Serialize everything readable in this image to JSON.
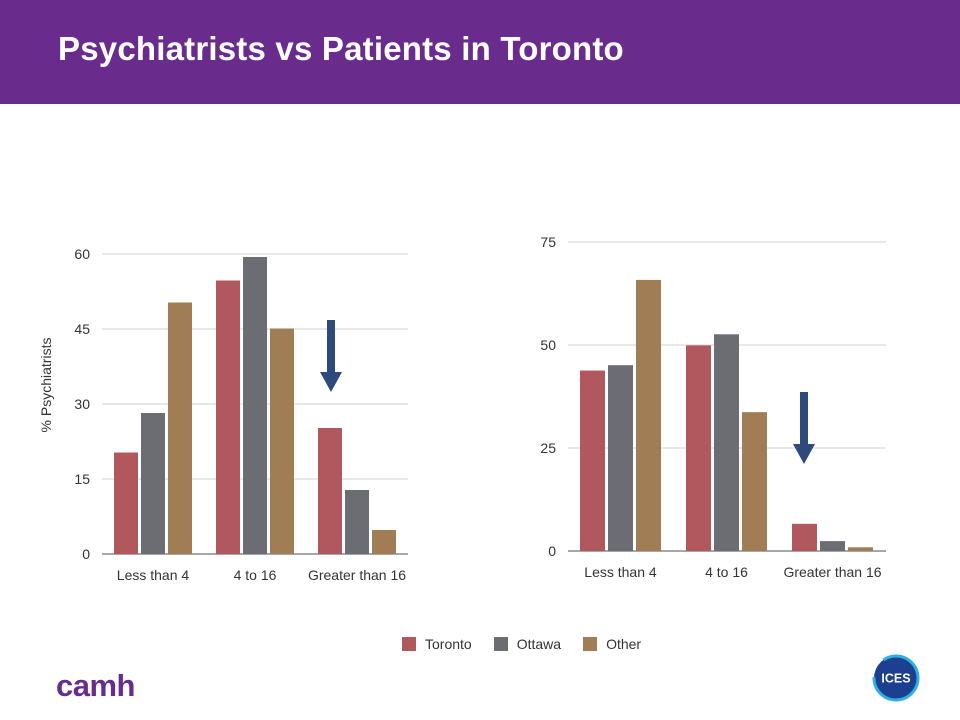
{
  "title": "Psychiatrists vs Patients in Toronto",
  "brand": {
    "name": "camh",
    "partner_logo": "ICES"
  },
  "colors": {
    "header": "#6a2c8c",
    "toronto": "#b0585e",
    "ottawa": "#6b6d73",
    "other": "#a07d55",
    "arrow": "#2e4a7d"
  },
  "legend": [
    {
      "label": "Toronto",
      "color": "#b0585e"
    },
    {
      "label": "Ottawa",
      "color": "#6b6d73"
    },
    {
      "label": "Other",
      "color": "#a07d55"
    }
  ],
  "chart_data": [
    {
      "type": "bar",
      "categories": [
        "Less than 4",
        "4 to 16",
        "Greater than 16"
      ],
      "series": [
        {
          "name": "Toronto",
          "values": [
            20.3,
            54.7,
            25.2
          ]
        },
        {
          "name": "Ottawa",
          "values": [
            28.2,
            59.4,
            12.8
          ]
        },
        {
          "name": "Other",
          "values": [
            50.3,
            45.1,
            4.8
          ]
        }
      ],
      "ylabel": "% Psychiatrists",
      "ylim": [
        0,
        60
      ],
      "yticks": [
        0,
        15,
        30,
        45,
        60
      ],
      "grid": true,
      "annotation": "down-arrow"
    },
    {
      "type": "bar",
      "categories": [
        "Less than 4",
        "4 to 16",
        "Greater than 16"
      ],
      "series": [
        {
          "name": "Toronto",
          "values": [
            43.8,
            49.9,
            6.6
          ]
        },
        {
          "name": "Ottawa",
          "values": [
            45.1,
            52.6,
            2.4
          ]
        },
        {
          "name": "Other",
          "values": [
            65.8,
            33.7,
            0.9
          ]
        }
      ],
      "ylabel": "",
      "ylim": [
        0,
        75
      ],
      "yticks": [
        0,
        25,
        50,
        75
      ],
      "grid": true,
      "annotation": "down-arrow"
    }
  ]
}
